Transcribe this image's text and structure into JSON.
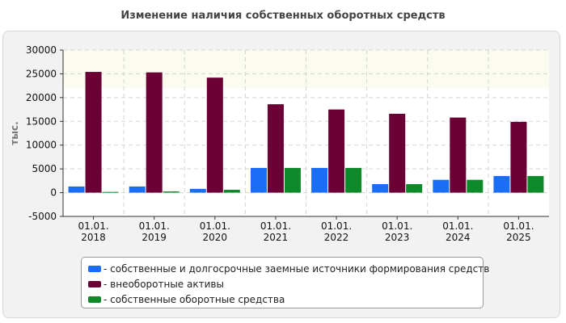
{
  "chart_data": {
    "type": "bar",
    "title": "Изменение наличия собственных оборотных средств",
    "ylabel": "тыс.",
    "xlabel": "",
    "ylim": [
      -5000,
      30000
    ],
    "yticks": [
      -5000,
      0,
      5000,
      10000,
      15000,
      20000,
      25000,
      30000
    ],
    "grid": true,
    "legend_position": "bottom",
    "categories": [
      "01.01.\n2018",
      "01.01.\n2019",
      "01.01.\n2020",
      "01.01.\n2021",
      "01.01.\n2022",
      "01.01.\n2023",
      "01.01.\n2024",
      "01.01.\n2025"
    ],
    "series": [
      {
        "name": "- собственные и долгосрочные заемные источники формирования средств",
        "color": "#1a6ef5",
        "values": [
          1300,
          1300,
          800,
          5200,
          5200,
          1800,
          2700,
          3500
        ]
      },
      {
        "name": "- внеоборотные активы",
        "color": "#6b0035",
        "values": [
          25400,
          25300,
          24200,
          18600,
          17500,
          16600,
          15800,
          14900
        ]
      },
      {
        "name": "- собственные оборотные средства",
        "color": "#0e8a2a",
        "values": [
          150,
          250,
          600,
          5200,
          5200,
          1800,
          2700,
          3500
        ]
      }
    ]
  }
}
